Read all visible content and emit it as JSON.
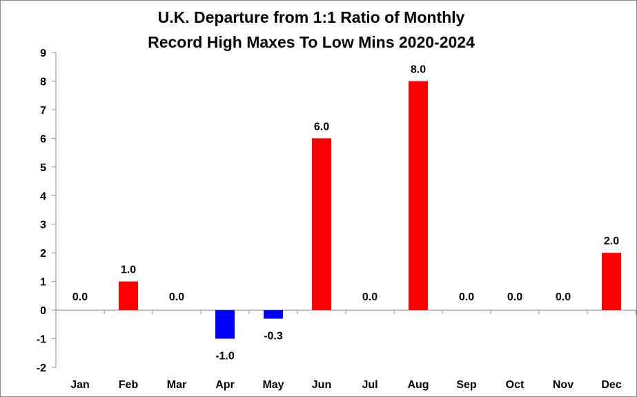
{
  "chart_data": {
    "type": "bar",
    "title_lines": [
      "U.K. Departure from 1:1 Ratio of Monthly",
      "Record High Maxes To Low Mins 2020-2024"
    ],
    "xlabel": "",
    "ylabel": "",
    "categories": [
      "Jan",
      "Feb",
      "Mar",
      "Apr",
      "May",
      "Jun",
      "Jul",
      "Aug",
      "Sep",
      "Oct",
      "Nov",
      "Dec"
    ],
    "values": [
      0.0,
      1.0,
      0.0,
      -1.0,
      -0.3,
      6.0,
      0.0,
      8.0,
      0.0,
      0.0,
      0.0,
      2.0
    ],
    "data_labels": [
      "0.0",
      "1.0",
      "0.0",
      "-1.0",
      "-0.3",
      "6.0",
      "0.0",
      "8.0",
      "0.0",
      "0.0",
      "0.0",
      "2.0"
    ],
    "ylim": [
      -2,
      9
    ],
    "yticks": [
      "-2",
      "-1",
      "0",
      "1",
      "2",
      "3",
      "4",
      "5",
      "6",
      "7",
      "8",
      "9"
    ],
    "grid": false,
    "legend": "none",
    "colors": {
      "positive": "#ff0000",
      "negative": "#0000ff",
      "axis": "#8c8c8c"
    }
  }
}
